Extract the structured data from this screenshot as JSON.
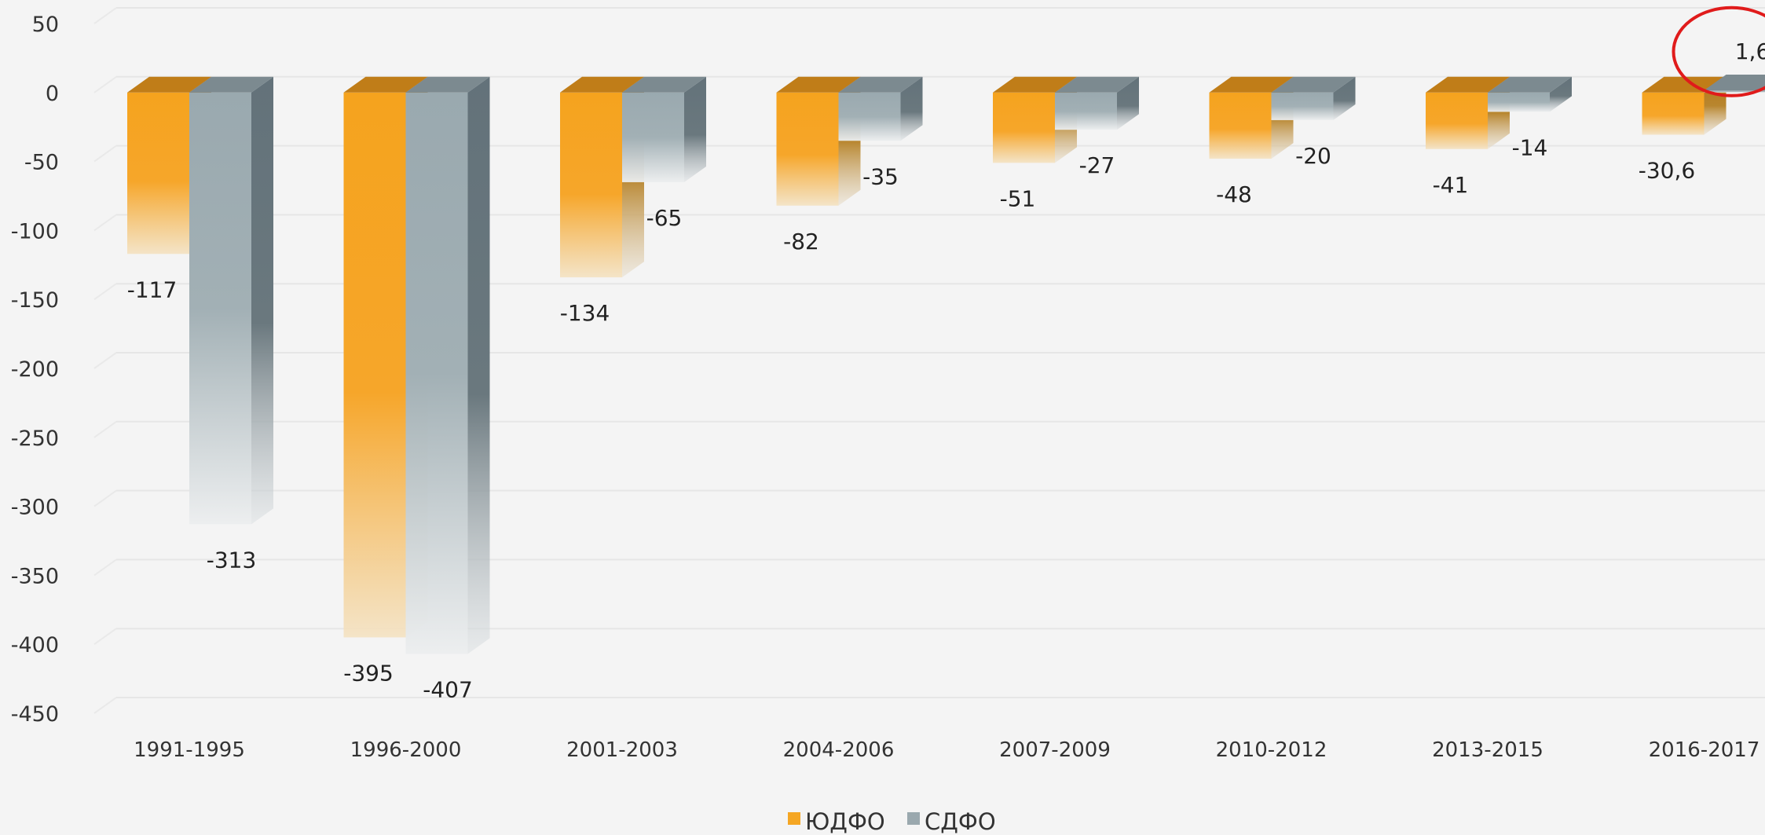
{
  "chart_data": {
    "type": "bar",
    "categories": [
      "1991-1995",
      "1996-2000",
      "2001-2003",
      "2004-2006",
      "2007-2009",
      "2010-2012",
      "2013-2015",
      "2016-2017"
    ],
    "series": [
      {
        "name": "ЮДФО",
        "values": [
          -117,
          -395,
          -134,
          -82,
          -51,
          -48,
          -41,
          -30.6
        ],
        "labels": [
          "-117",
          "-395",
          "-134",
          "-82",
          "-51",
          "-48",
          "-41",
          "-30,6"
        ]
      },
      {
        "name": "СДФО",
        "values": [
          -313,
          -407,
          -65,
          -35,
          -27,
          -20,
          -14,
          1.6
        ],
        "labels": [
          "-313",
          "-407",
          "-65",
          "-35",
          "-27",
          "-20",
          "-14",
          "1,6"
        ]
      }
    ],
    "ylim": [
      -450,
      50
    ],
    "yticks": [
      50,
      0,
      -50,
      -100,
      -150,
      -200,
      -250,
      -300,
      -350,
      -400,
      -450
    ],
    "grid": true,
    "legend": "bottom",
    "highlight": "circle around 2016-2017 СДФО value",
    "colors": {
      "ЮДФО": "#f5a623",
      "СДФО": "#9aa8ae",
      "highlight": "#e01b1b"
    },
    "title": "",
    "xlabel": "",
    "ylabel": ""
  }
}
